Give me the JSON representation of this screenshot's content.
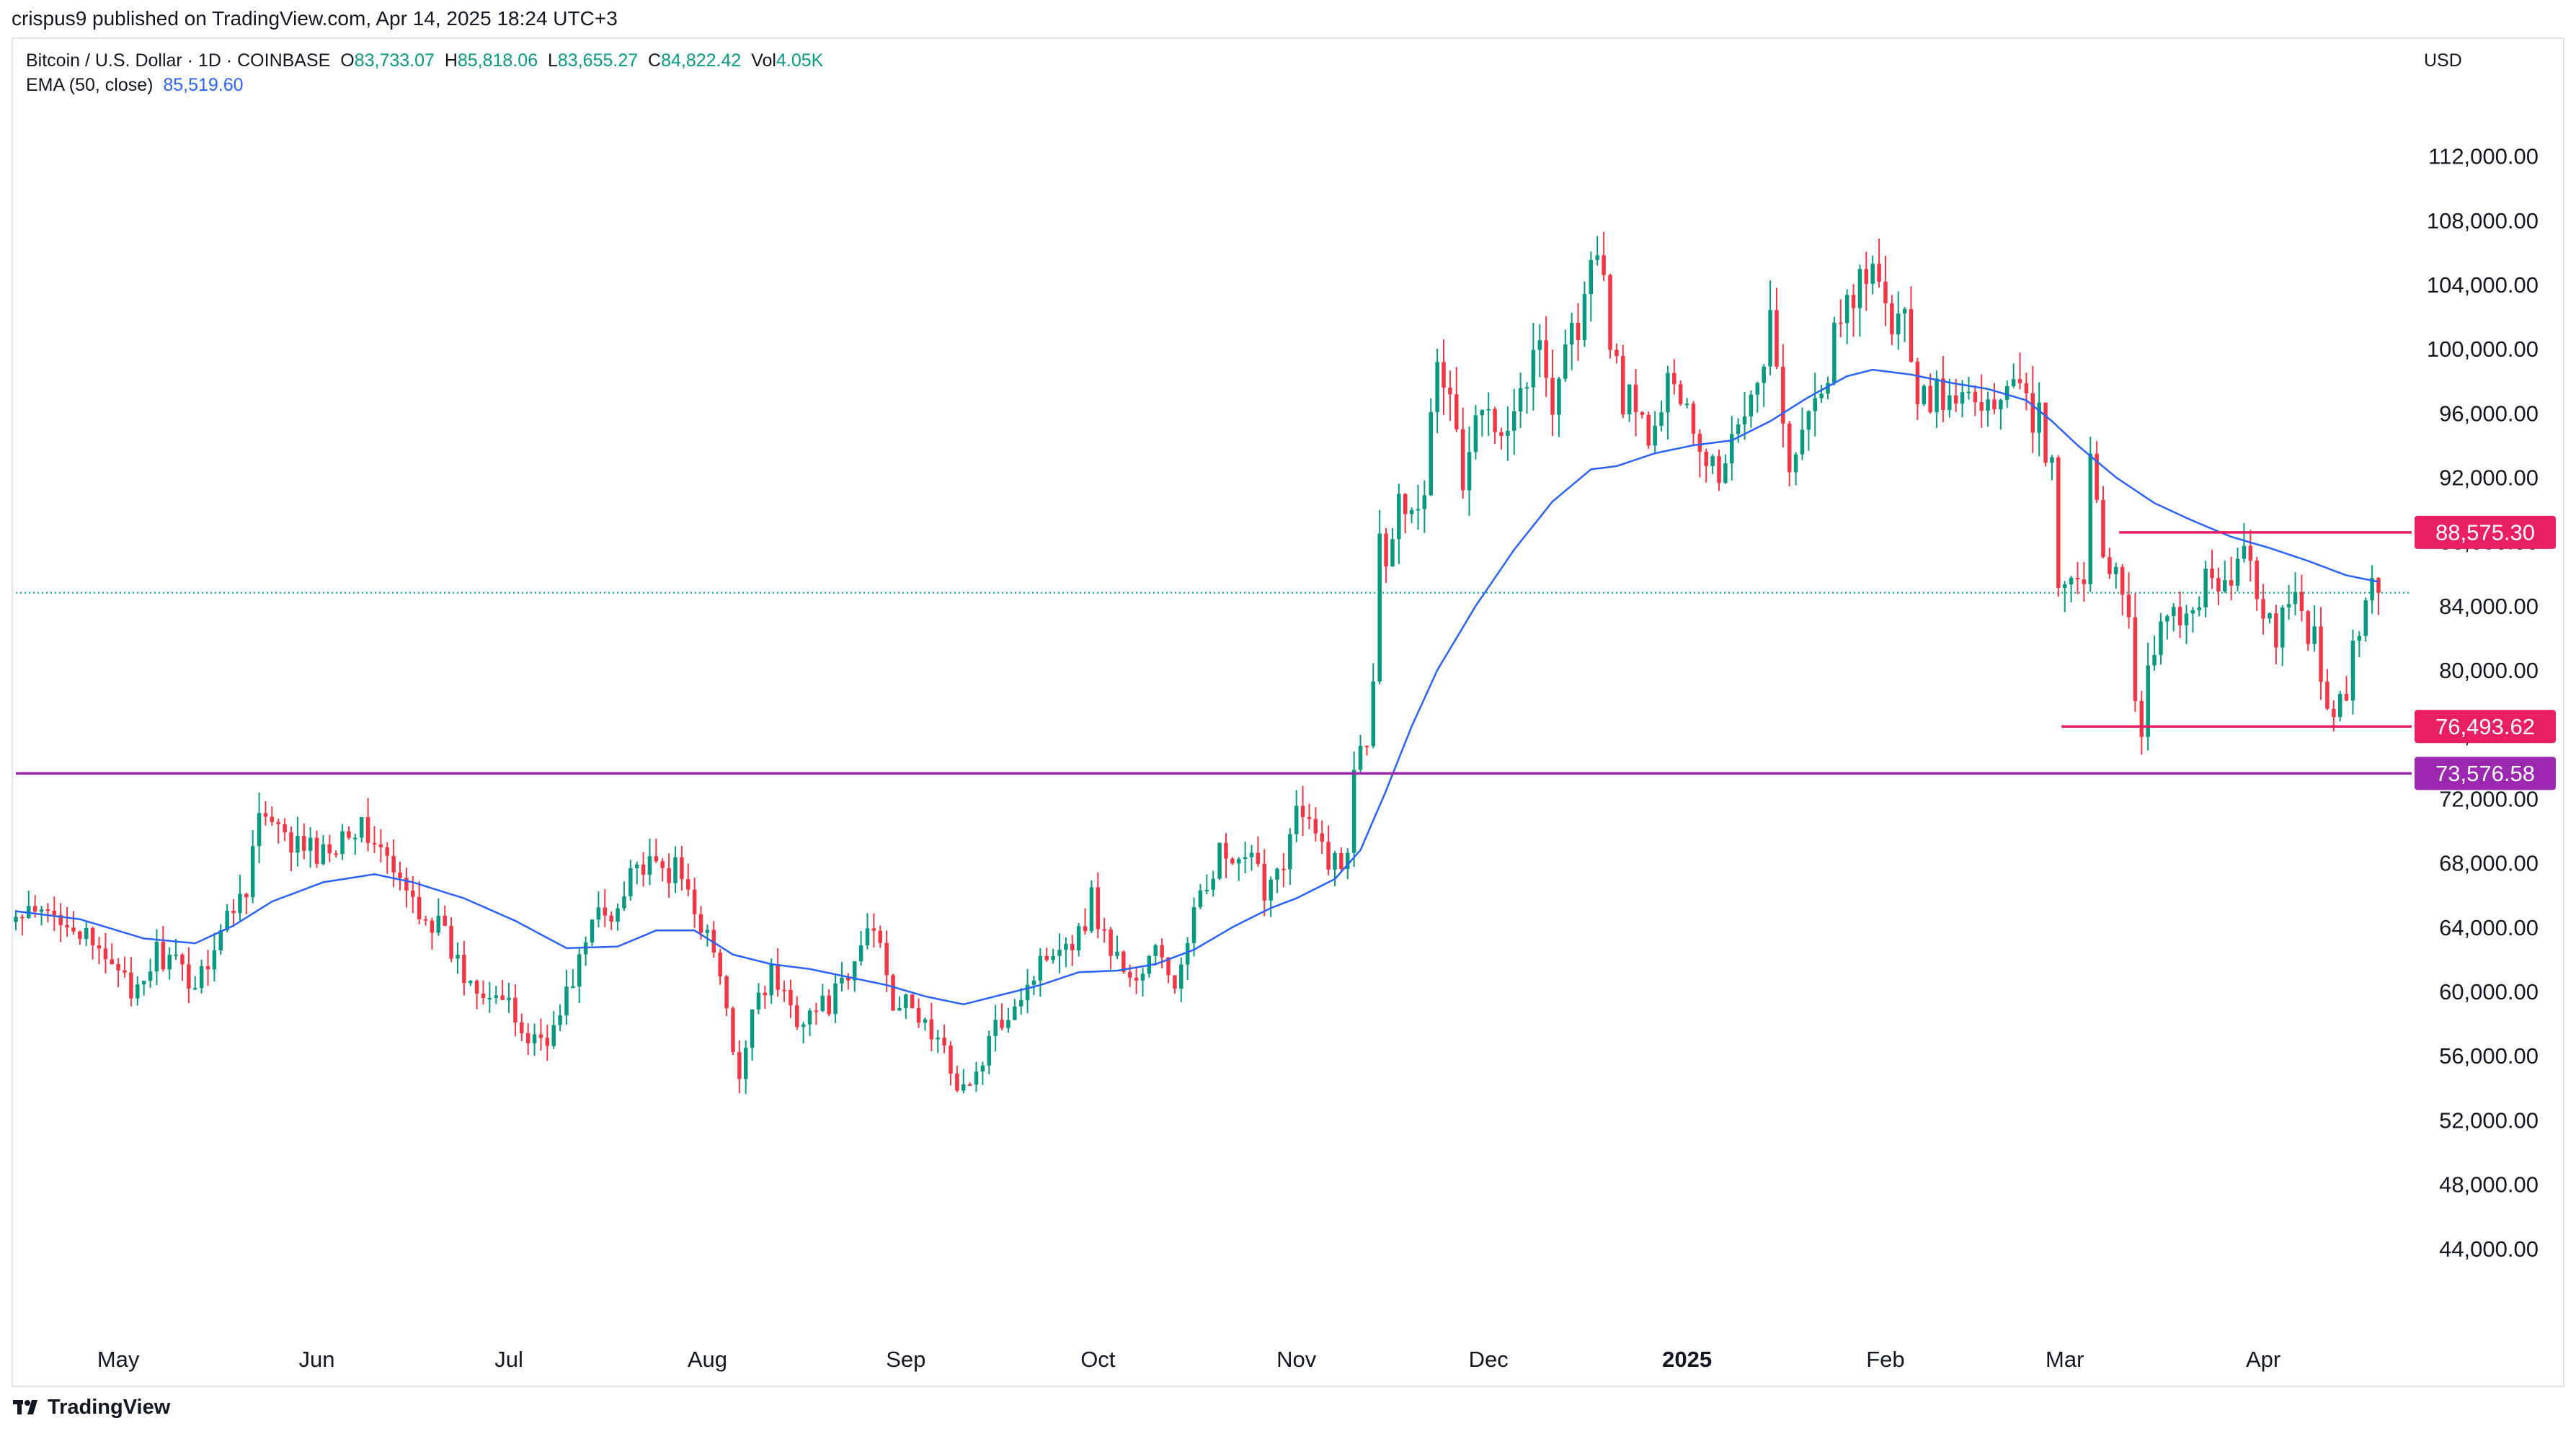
{
  "header": {
    "published_by": "crispus9 published on TradingView.com, Apr 14, 2025 18:24 UTC+3"
  },
  "legend": {
    "symbol": "Bitcoin / U.S. Dollar · 1D · COINBASE",
    "open_label": "O",
    "open": "83,733.07",
    "high_label": "H",
    "high": "85,818.06",
    "low_label": "L",
    "low": "83,655.27",
    "close_label": "C",
    "close": "84,822.42",
    "vol_label": "Vol",
    "vol": "4.05K",
    "ema_label": "EMA (50, close)",
    "ema_value": "85,519.60"
  },
  "currency": "USD",
  "footer": {
    "brand": "TradingView"
  },
  "colors": {
    "up": "#089981",
    "down": "#f23645",
    "ema": "#2962ff",
    "resistance": "#e91e63",
    "support_level": "#9c27b0",
    "last_price_line": "#089981"
  },
  "chart_data": {
    "type": "candlestick",
    "title": "Bitcoin / U.S. Dollar · 1D · COINBASE",
    "interval": "1D",
    "ylim": [
      40000,
      114000
    ],
    "y_ticks": [
      {
        "value": 44000,
        "label": "44,000.00"
      },
      {
        "value": 48000,
        "label": "48,000.00"
      },
      {
        "value": 52000,
        "label": "52,000.00"
      },
      {
        "value": 56000,
        "label": "56,000.00"
      },
      {
        "value": 60000,
        "label": "60,000.00"
      },
      {
        "value": 64000,
        "label": "64,000.00"
      },
      {
        "value": 68000,
        "label": "68,000.00"
      },
      {
        "value": 72000,
        "label": "72,000.00"
      },
      {
        "value": 76000,
        "label": "76,000.00"
      },
      {
        "value": 80000,
        "label": "80,000.00"
      },
      {
        "value": 84000,
        "label": "84,000.00"
      },
      {
        "value": 88000,
        "label": "88,000.00"
      },
      {
        "value": 92000,
        "label": "92,000.00"
      },
      {
        "value": 96000,
        "label": "96,000.00"
      },
      {
        "value": 100000,
        "label": "100,000.00"
      },
      {
        "value": 104000,
        "label": "104,000.00"
      },
      {
        "value": 108000,
        "label": "108,000.00"
      },
      {
        "value": 112000,
        "label": "112,000.00"
      }
    ],
    "x_ticks": [
      {
        "day": 16,
        "label": "May",
        "bold": false
      },
      {
        "day": 47,
        "label": "Jun",
        "bold": false
      },
      {
        "day": 77,
        "label": "Jul",
        "bold": false
      },
      {
        "day": 108,
        "label": "Aug",
        "bold": false
      },
      {
        "day": 139,
        "label": "Sep",
        "bold": false
      },
      {
        "day": 169,
        "label": "Oct",
        "bold": false
      },
      {
        "day": 200,
        "label": "Nov",
        "bold": false
      },
      {
        "day": 230,
        "label": "Dec",
        "bold": false
      },
      {
        "day": 261,
        "label": "2025",
        "bold": true
      },
      {
        "day": 292,
        "label": "Feb",
        "bold": false
      },
      {
        "day": 320,
        "label": "Mar",
        "bold": false
      },
      {
        "day": 351,
        "label": "Apr",
        "bold": false
      }
    ],
    "price_path_anchors": [
      [
        0,
        64500
      ],
      [
        8,
        64800
      ],
      [
        12,
        62500
      ],
      [
        16,
        62000
      ],
      [
        18,
        59000
      ],
      [
        22,
        62500
      ],
      [
        28,
        60500
      ],
      [
        32,
        63800
      ],
      [
        36,
        66800
      ],
      [
        38,
        71000
      ],
      [
        42,
        69300
      ],
      [
        48,
        68500
      ],
      [
        52,
        70500
      ],
      [
        56,
        69500
      ],
      [
        60,
        66500
      ],
      [
        66,
        64000
      ],
      [
        70,
        61000
      ],
      [
        75,
        60000
      ],
      [
        80,
        57000
      ],
      [
        84,
        57500
      ],
      [
        88,
        62000
      ],
      [
        91,
        65000
      ],
      [
        93,
        64500
      ],
      [
        96,
        68000
      ],
      [
        99,
        67500
      ],
      [
        103,
        67500
      ],
      [
        106,
        65500
      ],
      [
        110,
        61000
      ],
      [
        112,
        56000
      ],
      [
        113,
        54000
      ],
      [
        115,
        59500
      ],
      [
        118,
        61000
      ],
      [
        122,
        58500
      ],
      [
        126,
        59000
      ],
      [
        130,
        60500
      ],
      [
        133,
        64000
      ],
      [
        135,
        63500
      ],
      [
        137,
        59500
      ],
      [
        141,
        58500
      ],
      [
        144,
        56800
      ],
      [
        147,
        54500
      ],
      [
        149,
        53800
      ],
      [
        152,
        56800
      ],
      [
        155,
        59000
      ],
      [
        158,
        60500
      ],
      [
        162,
        63000
      ],
      [
        166,
        63500
      ],
      [
        168,
        65800
      ],
      [
        170,
        63500
      ],
      [
        172,
        62000
      ],
      [
        175,
        60600
      ],
      [
        178,
        62500
      ],
      [
        181,
        60500
      ],
      [
        183,
        62500
      ],
      [
        185,
        66500
      ],
      [
        188,
        68500
      ],
      [
        191,
        67500
      ],
      [
        193,
        68000
      ],
      [
        195,
        66500
      ],
      [
        198,
        68500
      ],
      [
        200,
        71200
      ],
      [
        203,
        69500
      ],
      [
        205,
        68500
      ],
      [
        207,
        67500
      ],
      [
        208,
        69000
      ],
      [
        209,
        74500
      ],
      [
        210,
        76000
      ],
      [
        211,
        76300
      ],
      [
        212,
        80000
      ],
      [
        213,
        88000
      ],
      [
        214,
        87500
      ],
      [
        216,
        90500
      ],
      [
        218,
        90800
      ],
      [
        220,
        91800
      ],
      [
        222,
        98500
      ],
      [
        224,
        97500
      ],
      [
        226,
        91500
      ],
      [
        228,
        95000
      ],
      [
        230,
        96500
      ],
      [
        232,
        95800
      ],
      [
        234,
        96500
      ],
      [
        236,
        98500
      ],
      [
        238,
        100000
      ],
      [
        240,
        97000
      ],
      [
        242,
        100500
      ],
      [
        244,
        101500
      ],
      [
        246,
        104500
      ],
      [
        247,
        106000
      ],
      [
        249,
        101000
      ],
      [
        251,
        97000
      ],
      [
        253,
        96000
      ],
      [
        255,
        94500
      ],
      [
        257,
        95500
      ],
      [
        259,
        99000
      ],
      [
        261,
        96500
      ],
      [
        263,
        94000
      ],
      [
        266,
        92500
      ],
      [
        268,
        94500
      ],
      [
        270,
        96500
      ],
      [
        272,
        98000
      ],
      [
        274,
        102000
      ],
      [
        276,
        94500
      ],
      [
        278,
        92500
      ],
      [
        280,
        95500
      ],
      [
        282,
        97500
      ],
      [
        284,
        100500
      ],
      [
        286,
        102000
      ],
      [
        288,
        104500
      ],
      [
        290,
        104000
      ],
      [
        292,
        102500
      ],
      [
        294,
        101800
      ],
      [
        296,
        100500
      ],
      [
        297,
        97500
      ],
      [
        300,
        97000
      ],
      [
        303,
        96500
      ],
      [
        306,
        97500
      ],
      [
        309,
        96000
      ],
      [
        312,
        97500
      ],
      [
        314,
        96000
      ],
      [
        316,
        95500
      ],
      [
        318,
        92000
      ],
      [
        319,
        86000
      ],
      [
        320,
        84500
      ],
      [
        321,
        86000
      ],
      [
        323,
        86500
      ],
      [
        324,
        94000
      ],
      [
        325,
        90500
      ],
      [
        326,
        86000
      ],
      [
        328,
        86800
      ],
      [
        330,
        83500
      ],
      [
        331,
        78500
      ],
      [
        332,
        76800
      ],
      [
        333,
        80500
      ],
      [
        335,
        82500
      ],
      [
        337,
        83000
      ],
      [
        339,
        84000
      ],
      [
        341,
        84500
      ],
      [
        343,
        86500
      ],
      [
        345,
        84500
      ],
      [
        347,
        87200
      ],
      [
        349,
        86500
      ],
      [
        351,
        83000
      ],
      [
        353,
        82000
      ],
      [
        355,
        85000
      ],
      [
        357,
        83500
      ],
      [
        359,
        82000
      ],
      [
        361,
        78300
      ],
      [
        362,
        76400
      ],
      [
        364,
        79000
      ],
      [
        366,
        82500
      ],
      [
        367,
        84000
      ],
      [
        368,
        85500
      ],
      [
        369,
        84822
      ]
    ],
    "ema50": [
      [
        0,
        65000
      ],
      [
        10,
        64500
      ],
      [
        20,
        63300
      ],
      [
        28,
        63000
      ],
      [
        34,
        64100
      ],
      [
        40,
        65600
      ],
      [
        48,
        66800
      ],
      [
        56,
        67300
      ],
      [
        62,
        66800
      ],
      [
        70,
        65800
      ],
      [
        78,
        64400
      ],
      [
        86,
        62700
      ],
      [
        94,
        62800
      ],
      [
        100,
        63800
      ],
      [
        106,
        63800
      ],
      [
        112,
        62300
      ],
      [
        118,
        61700
      ],
      [
        124,
        61400
      ],
      [
        130,
        60900
      ],
      [
        136,
        60400
      ],
      [
        142,
        59700
      ],
      [
        148,
        59200
      ],
      [
        154,
        59800
      ],
      [
        160,
        60400
      ],
      [
        166,
        61200
      ],
      [
        172,
        61300
      ],
      [
        178,
        61700
      ],
      [
        184,
        62600
      ],
      [
        190,
        64000
      ],
      [
        196,
        65200
      ],
      [
        200,
        65800
      ],
      [
        206,
        67000
      ],
      [
        210,
        68800
      ],
      [
        214,
        72500
      ],
      [
        218,
        76500
      ],
      [
        222,
        80000
      ],
      [
        228,
        84000
      ],
      [
        234,
        87500
      ],
      [
        240,
        90500
      ],
      [
        246,
        92500
      ],
      [
        250,
        92700
      ],
      [
        256,
        93500
      ],
      [
        262,
        94000
      ],
      [
        268,
        94300
      ],
      [
        274,
        95500
      ],
      [
        280,
        97000
      ],
      [
        286,
        98300
      ],
      [
        290,
        98700
      ],
      [
        296,
        98400
      ],
      [
        302,
        97900
      ],
      [
        308,
        97500
      ],
      [
        314,
        96800
      ],
      [
        318,
        95500
      ],
      [
        322,
        94000
      ],
      [
        328,
        92000
      ],
      [
        334,
        90400
      ],
      [
        340,
        89300
      ],
      [
        346,
        88300
      ],
      [
        352,
        87600
      ],
      [
        358,
        86800
      ],
      [
        364,
        85900
      ],
      [
        369,
        85500
      ]
    ],
    "horizontal_levels": [
      {
        "value": 88575.3,
        "label": "88,575.30",
        "from_day": 333,
        "color": "#e91e63",
        "style": "solid"
      },
      {
        "value": 76493.62,
        "label": "76,493.62",
        "from_day": 324,
        "color": "#e91e63",
        "style": "solid"
      },
      {
        "value": 73576.58,
        "label": "73,576.58",
        "from_day": 0,
        "color": "#9c27b0",
        "style": "solid"
      }
    ],
    "last_price": {
      "value": 84822.42,
      "style": "dotted"
    },
    "grid": false,
    "price_scale": "right"
  }
}
